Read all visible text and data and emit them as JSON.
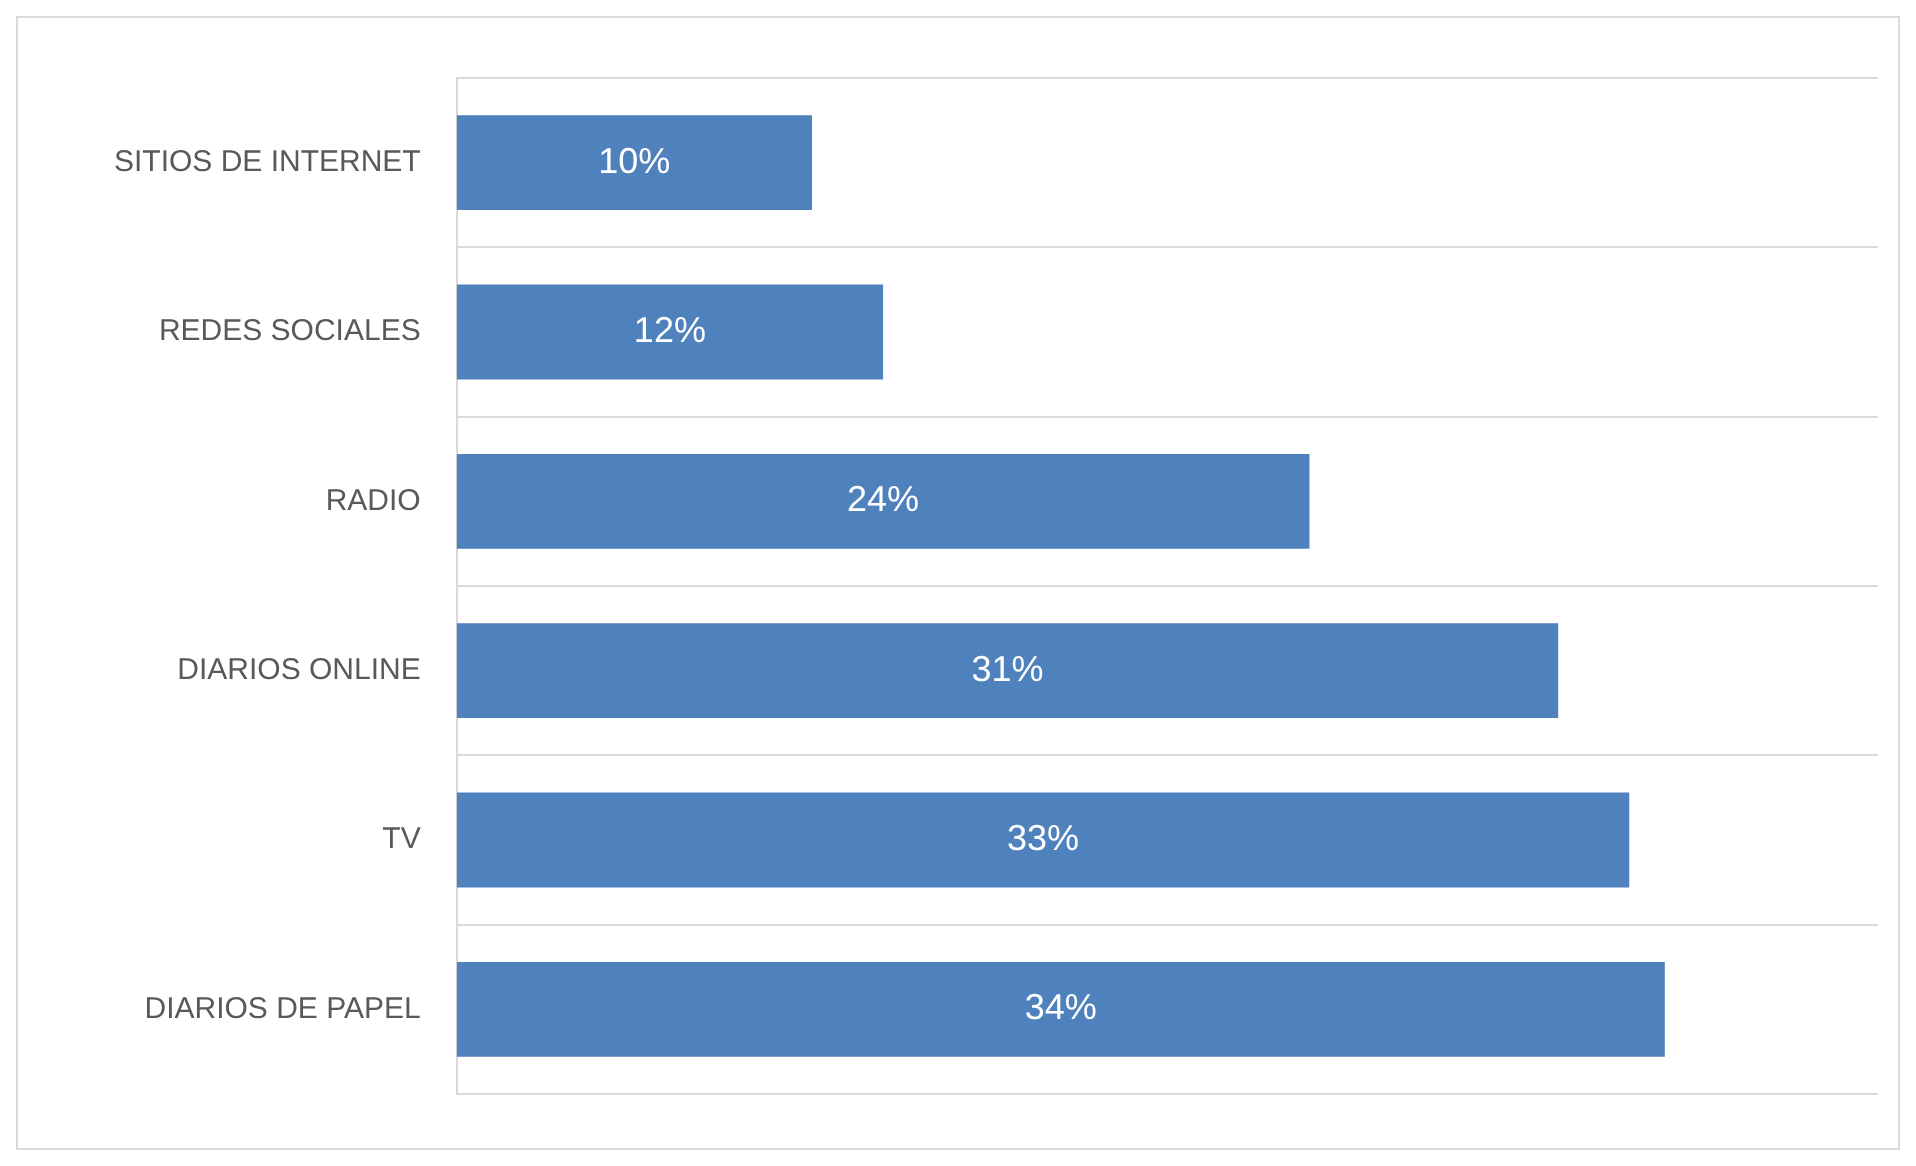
{
  "chart_data": {
    "type": "bar",
    "orientation": "horizontal",
    "categories": [
      "SITIOS DE INTERNET",
      "REDES SOCIALES",
      "RADIO",
      "DIARIOS ONLINE",
      "TV",
      "DIARIOS DE PAPEL"
    ],
    "values": [
      10,
      12,
      24,
      31,
      33,
      34
    ],
    "value_labels": [
      "10%",
      "12%",
      "24%",
      "31%",
      "33%",
      "34%"
    ],
    "color": "#4f81bd",
    "xlim": [
      0,
      40
    ],
    "grid": "y",
    "legend": false
  }
}
